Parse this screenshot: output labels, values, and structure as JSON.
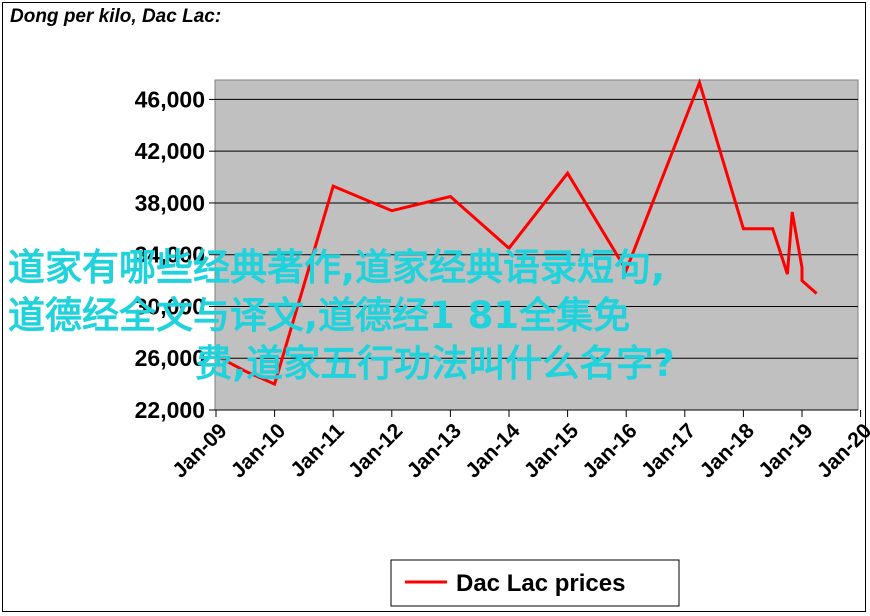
{
  "title": "Dong per kilo, Dac Lac:",
  "chart_data": {
    "type": "line",
    "title": "Dong per kilo, Dac Lac:",
    "xlabel": "",
    "ylabel": "",
    "x_ticks": [
      "Jan-09",
      "Jan-10",
      "Jan-11",
      "Jan-12",
      "Jan-13",
      "Jan-14",
      "Jan-15",
      "Jan-16",
      "Jan-17",
      "Jan-18",
      "Jan-19",
      "Jan-20"
    ],
    "y_ticks": [
      "22,000",
      "26,000",
      "30,000",
      "34,000",
      "38,000",
      "42,000",
      "46,000"
    ],
    "ylim": [
      22000,
      47500
    ],
    "grid": true,
    "legend_position": "bottom",
    "series": [
      {
        "name": "Dac Lac prices",
        "color": "#ff0000",
        "points": [
          [
            "Jan-09",
            26200
          ],
          [
            "Jan-09-06",
            25000
          ],
          [
            "Jan-10",
            24000
          ],
          [
            "Jan-11",
            39300
          ],
          [
            "Jan-12",
            37400
          ],
          [
            "Jan-13",
            38500
          ],
          [
            "Jan-14",
            34500
          ],
          [
            "Jan-15",
            40300
          ],
          [
            "Jan-16",
            32800
          ],
          [
            "Jan-17-03",
            47300
          ],
          [
            "Jan-18",
            36000
          ],
          [
            "Jan-18-06",
            36000
          ],
          [
            "Jan-18-09",
            32500
          ],
          [
            "Jan-18-10",
            37300
          ],
          [
            "Jan-18-12",
            33000
          ],
          [
            "Jan-19",
            32000
          ],
          [
            "Jan-19-03",
            31000
          ]
        ]
      }
    ]
  },
  "legend": {
    "label": "Dac Lac prices"
  },
  "overlay": {
    "line1": "道家有哪些经典著作,道家经典语录短句,",
    "line2": "道德经全文与译文,道德经1 81全集免",
    "line3": "费,道家五行功法叫什么名字?"
  }
}
